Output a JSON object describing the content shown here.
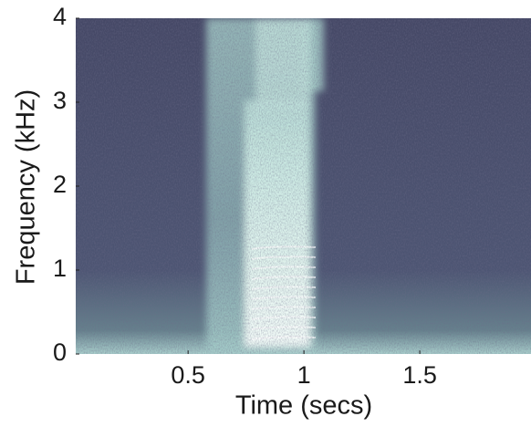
{
  "chart_data": {
    "type": "spectrogram",
    "xlabel": "Time (secs)",
    "ylabel": "Frequency (kHz)",
    "xlim": [
      0.015,
      1.98
    ],
    "xticks": [
      0.5,
      1,
      1.5
    ],
    "ylim": [
      0,
      4
    ],
    "yticks": [
      0,
      1,
      2,
      3,
      4
    ]
  }
}
